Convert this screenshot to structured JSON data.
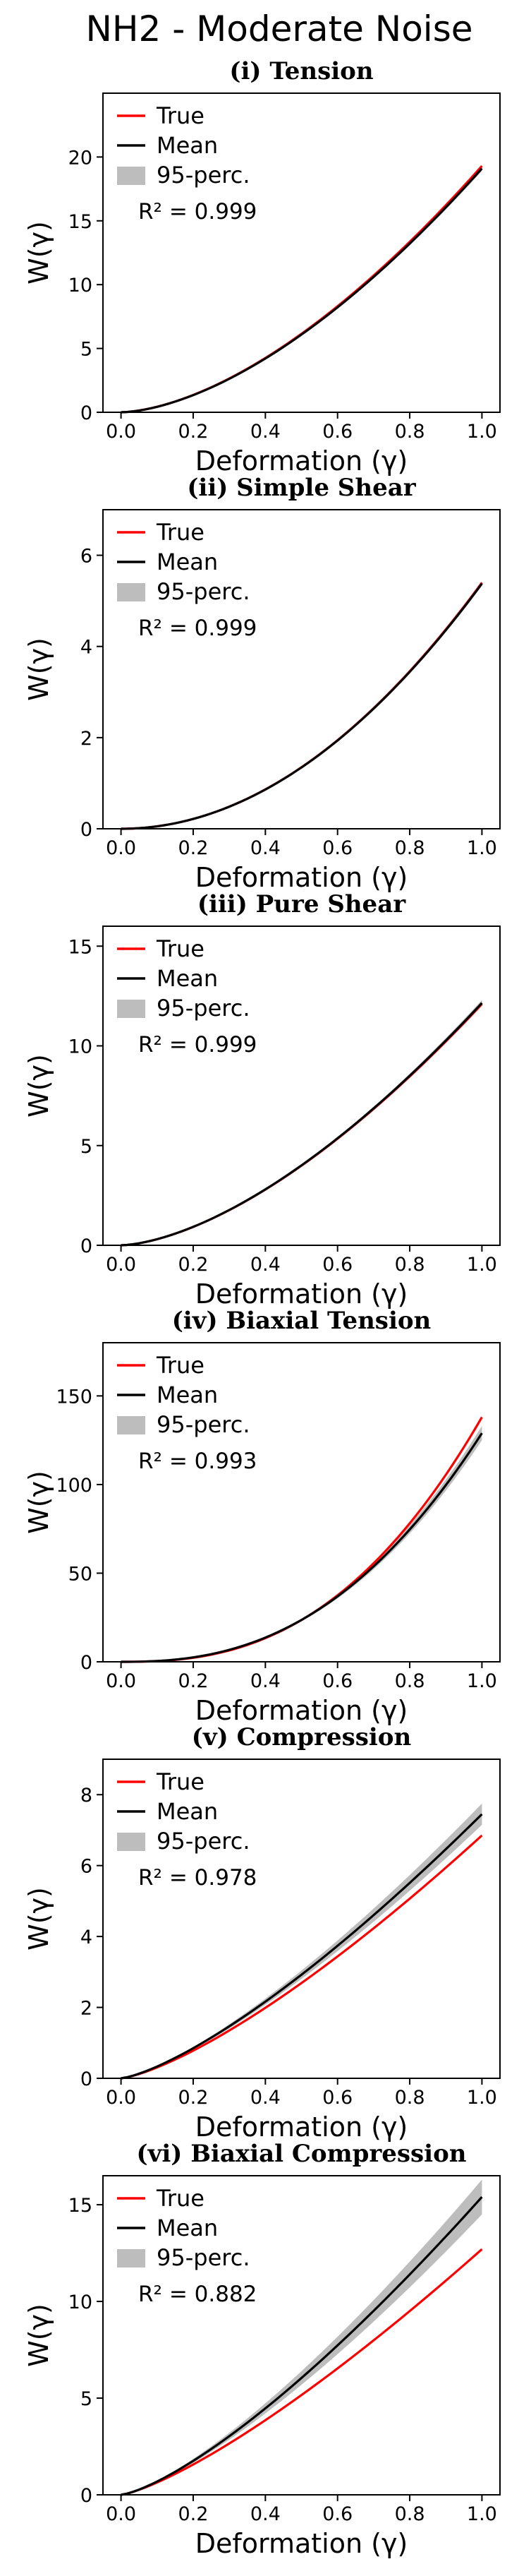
{
  "figure_title": "NH2 - Moderate Noise",
  "colors": {
    "true": "#ff0000",
    "mean": "#000000",
    "band": "#bdbdbd"
  },
  "legend": {
    "true_label": "True",
    "mean_label": "Mean",
    "band_label": "95-perc."
  },
  "chart_data": [
    {
      "type": "line",
      "title": "(i) Tension",
      "xlabel": "Deformation (γ)",
      "ylabel": "W(γ)",
      "xlim": [
        -0.05,
        1.05
      ],
      "ylim": [
        0,
        25
      ],
      "xticks": [
        0.0,
        0.2,
        0.4,
        0.6,
        0.8,
        1.0
      ],
      "yticks": [
        0,
        5,
        10,
        15,
        20
      ],
      "legend_position": "top-left",
      "r2_label": "R² = 0.999",
      "series": [
        {
          "name": "True",
          "end_value": 19.3,
          "exponent": 1.65
        },
        {
          "name": "Mean",
          "end_value": 19.1,
          "exponent": 1.65
        },
        {
          "name": "95-perc.",
          "lower_end": 18.9,
          "upper_end": 19.3,
          "exponent": 1.65
        }
      ]
    },
    {
      "type": "line",
      "title": "(ii) Simple Shear",
      "xlabel": "Deformation (γ)",
      "ylabel": "W(γ)",
      "xlim": [
        -0.05,
        1.05
      ],
      "ylim": [
        0,
        7
      ],
      "xticks": [
        0.0,
        0.2,
        0.4,
        0.6,
        0.8,
        1.0
      ],
      "yticks": [
        0,
        2,
        4,
        6
      ],
      "legend_position": "top-left",
      "r2_label": "R² = 0.999",
      "series": [
        {
          "name": "True",
          "end_value": 5.4,
          "exponent": 2.0
        },
        {
          "name": "Mean",
          "end_value": 5.38,
          "exponent": 2.0
        },
        {
          "name": "95-perc.",
          "lower_end": 5.33,
          "upper_end": 5.43,
          "exponent": 2.0
        }
      ]
    },
    {
      "type": "line",
      "title": "(iii) Pure Shear",
      "xlabel": "Deformation (γ)",
      "ylabel": "W(γ)",
      "xlim": [
        -0.05,
        1.05
      ],
      "ylim": [
        0,
        16
      ],
      "xticks": [
        0.0,
        0.2,
        0.4,
        0.6,
        0.8,
        1.0
      ],
      "yticks": [
        0,
        5,
        10,
        15
      ],
      "legend_position": "top-left",
      "r2_label": "R² = 0.999",
      "series": [
        {
          "name": "True",
          "end_value": 12.1,
          "exponent": 1.6
        },
        {
          "name": "Mean",
          "end_value": 12.15,
          "exponent": 1.6
        },
        {
          "name": "95-perc.",
          "lower_end": 12.0,
          "upper_end": 12.3,
          "exponent": 1.6
        }
      ]
    },
    {
      "type": "line",
      "title": "(iv) Biaxial Tension",
      "xlabel": "Deformation (γ)",
      "ylabel": "W(γ)",
      "xlim": [
        -0.05,
        1.05
      ],
      "ylim": [
        0,
        180
      ],
      "xticks": [
        0.0,
        0.2,
        0.4,
        0.6,
        0.8,
        1.0
      ],
      "yticks": [
        0,
        50,
        100,
        150
      ],
      "legend_position": "top-left",
      "r2_label": "R² = 0.993",
      "series": [
        {
          "name": "True",
          "end_value": 138,
          "exponent": 2.55
        },
        {
          "name": "Mean",
          "end_value": 129,
          "exponent": 2.45
        },
        {
          "name": "95-perc.",
          "lower_end": 125,
          "upper_end": 133,
          "exponent": 2.45
        }
      ]
    },
    {
      "type": "line",
      "title": "(v) Compression",
      "xlabel": "Deformation (γ)",
      "ylabel": "W(γ)",
      "xlim": [
        -0.05,
        1.05
      ],
      "ylim": [
        0,
        9
      ],
      "xticks": [
        0.0,
        0.2,
        0.4,
        0.6,
        0.8,
        1.0
      ],
      "yticks": [
        0,
        2,
        4,
        6,
        8
      ],
      "legend_position": "top-left",
      "r2_label": "R² = 0.978",
      "series": [
        {
          "name": "True",
          "end_value": 6.85,
          "exponent": 1.35
        },
        {
          "name": "Mean",
          "end_value": 7.45,
          "exponent": 1.35
        },
        {
          "name": "95-perc.",
          "lower_end": 7.15,
          "upper_end": 7.75,
          "exponent": 1.35
        }
      ]
    },
    {
      "type": "line",
      "title": "(vi) Biaxial Compression",
      "xlabel": "Deformation (γ)",
      "ylabel": "W(γ)",
      "xlim": [
        -0.05,
        1.05
      ],
      "ylim": [
        0,
        16.5
      ],
      "xticks": [
        0.0,
        0.2,
        0.4,
        0.6,
        0.8,
        1.0
      ],
      "yticks": [
        0,
        5,
        10,
        15
      ],
      "legend_position": "top-left",
      "r2_label": "R² = 0.882",
      "series": [
        {
          "name": "True",
          "end_value": 12.7,
          "exponent": 1.3
        },
        {
          "name": "Mean",
          "end_value": 15.4,
          "exponent": 1.35
        },
        {
          "name": "95-perc.",
          "lower_end": 14.5,
          "upper_end": 16.3,
          "exponent": 1.35
        }
      ]
    }
  ]
}
